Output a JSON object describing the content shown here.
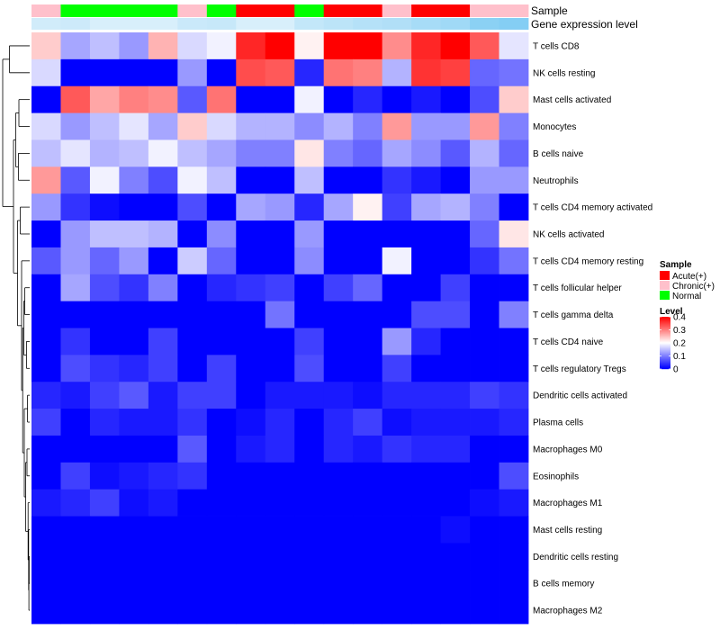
{
  "chart_data": {
    "type": "heatmap",
    "annotation_labels": {
      "sample": "Sample",
      "gene_expression": "Gene expression level"
    },
    "sample_groups": [
      "Chronic(+)",
      "Normal",
      "Normal",
      "Normal",
      "Normal",
      "Chronic(+)",
      "Normal",
      "Acute(+)",
      "Acute(+)",
      "Normal",
      "Acute(+)",
      "Acute(+)",
      "Chronic(+)",
      "Acute(+)",
      "Acute(+)",
      "Chronic(+)",
      "Chronic(+)"
    ],
    "gene_expression_level": [
      0.85,
      0.82,
      0.9,
      0.9,
      0.9,
      0.8,
      0.78,
      0.9,
      0.9,
      0.75,
      0.7,
      0.65,
      0.62,
      0.55,
      0.5,
      0.35,
      0.3
    ],
    "rows": [
      "T cells CD8",
      "NK cells resting",
      "Mast cells activated",
      "Monocytes",
      "B cells naive",
      "Neutrophils",
      "T cells CD4 memory activated",
      "NK cells activated",
      "T cells CD4 memory resting",
      "T cells follicular helper",
      "T cells gamma delta",
      "T cells CD4 naive",
      "T cells regulatory  Tregs",
      "Dendritic cells activated",
      "Plasma cells",
      "Macrophages M0",
      "Eosinophils",
      "Macrophages M1",
      "Mast cells resting",
      "Dendritic cells resting",
      "B cells memory",
      "Macrophages M2"
    ],
    "values": [
      [
        0.24,
        0.13,
        0.15,
        0.12,
        0.26,
        0.17,
        0.19,
        0.37,
        0.4,
        0.21,
        0.4,
        0.4,
        0.29,
        0.37,
        0.4,
        0.33,
        0.18
      ],
      [
        0.17,
        0.0,
        0.0,
        0.0,
        0.0,
        0.12,
        0.0,
        0.34,
        0.33,
        0.03,
        0.31,
        0.3,
        0.14,
        0.36,
        0.35,
        0.08,
        0.09
      ],
      [
        0.0,
        0.33,
        0.27,
        0.3,
        0.29,
        0.07,
        0.31,
        0.0,
        0.0,
        0.19,
        0.0,
        0.03,
        0.0,
        0.02,
        0.0,
        0.06,
        0.24
      ],
      [
        0.17,
        0.12,
        0.15,
        0.18,
        0.13,
        0.24,
        0.17,
        0.14,
        0.14,
        0.11,
        0.14,
        0.1,
        0.28,
        0.12,
        0.12,
        0.28,
        0.1
      ],
      [
        0.15,
        0.18,
        0.14,
        0.15,
        0.19,
        0.15,
        0.13,
        0.1,
        0.1,
        0.22,
        0.1,
        0.08,
        0.13,
        0.11,
        0.07,
        0.14,
        0.08
      ],
      [
        0.28,
        0.07,
        0.19,
        0.1,
        0.06,
        0.19,
        0.15,
        0.0,
        0.0,
        0.15,
        0.0,
        0.0,
        0.04,
        0.02,
        0.0,
        0.12,
        0.12
      ],
      [
        0.12,
        0.04,
        0.01,
        0.0,
        0.0,
        0.06,
        0.0,
        0.13,
        0.12,
        0.03,
        0.13,
        0.21,
        0.05,
        0.13,
        0.14,
        0.1,
        0.0
      ],
      [
        0.0,
        0.12,
        0.15,
        0.15,
        0.14,
        0.0,
        0.11,
        0.0,
        0.0,
        0.12,
        0.0,
        0.0,
        0.0,
        0.0,
        0.0,
        0.08,
        0.22
      ],
      [
        0.07,
        0.12,
        0.08,
        0.12,
        0.0,
        0.16,
        0.08,
        0.0,
        0.0,
        0.11,
        0.0,
        0.0,
        0.19,
        0.0,
        0.0,
        0.04,
        0.09
      ],
      [
        0.0,
        0.13,
        0.06,
        0.04,
        0.1,
        0.0,
        0.03,
        0.04,
        0.05,
        0.0,
        0.05,
        0.08,
        0.0,
        0.0,
        0.05,
        0.0,
        0.0
      ],
      [
        0.0,
        0.0,
        0.0,
        0.0,
        0.0,
        0.0,
        0.0,
        0.0,
        0.09,
        0.0,
        0.0,
        0.0,
        0.0,
        0.06,
        0.06,
        0.0,
        0.1
      ],
      [
        0.0,
        0.04,
        0.0,
        0.0,
        0.05,
        0.0,
        0.0,
        0.0,
        0.0,
        0.05,
        0.0,
        0.0,
        0.12,
        0.03,
        0.0,
        0.0,
        0.0
      ],
      [
        0.0,
        0.06,
        0.04,
        0.03,
        0.05,
        0.0,
        0.05,
        0.0,
        0.0,
        0.06,
        0.0,
        0.0,
        0.05,
        0.0,
        0.0,
        0.0,
        0.0
      ],
      [
        0.03,
        0.02,
        0.05,
        0.07,
        0.02,
        0.05,
        0.05,
        0.0,
        0.02,
        0.02,
        0.02,
        0.01,
        0.03,
        0.03,
        0.03,
        0.05,
        0.04
      ],
      [
        0.05,
        0.0,
        0.03,
        0.02,
        0.02,
        0.04,
        0.0,
        0.01,
        0.03,
        0.0,
        0.03,
        0.05,
        0.01,
        0.02,
        0.02,
        0.02,
        0.03
      ],
      [
        0.0,
        0.0,
        0.0,
        0.0,
        0.0,
        0.07,
        0.0,
        0.02,
        0.03,
        0.0,
        0.03,
        0.02,
        0.04,
        0.03,
        0.03,
        0.0,
        0.0
      ],
      [
        0.0,
        0.05,
        0.01,
        0.02,
        0.03,
        0.04,
        0.0,
        0.0,
        0.0,
        0.0,
        0.0,
        0.0,
        0.0,
        0.0,
        0.0,
        0.0,
        0.06
      ],
      [
        0.02,
        0.03,
        0.05,
        0.01,
        0.02,
        0.0,
        0.0,
        0.0,
        0.0,
        0.0,
        0.0,
        0.0,
        0.0,
        0.0,
        0.0,
        0.01,
        0.02
      ],
      [
        0.0,
        0.0,
        0.0,
        0.0,
        0.0,
        0.0,
        0.0,
        0.0,
        0.0,
        0.0,
        0.0,
        0.0,
        0.0,
        0.0,
        0.01,
        0.0,
        0.0
      ],
      [
        0.0,
        0.0,
        0.0,
        0.0,
        0.0,
        0.0,
        0.0,
        0.0,
        0.0,
        0.0,
        0.0,
        0.0,
        0.0,
        0.0,
        0.0,
        0.0,
        0.0
      ],
      [
        0.0,
        0.0,
        0.0,
        0.0,
        0.0,
        0.0,
        0.0,
        0.0,
        0.0,
        0.0,
        0.0,
        0.0,
        0.0,
        0.0,
        0.0,
        0.0,
        0.0
      ],
      [
        0.0,
        0.0,
        0.0,
        0.0,
        0.0,
        0.0,
        0.0,
        0.0,
        0.0,
        0.0,
        0.0,
        0.0,
        0.0,
        0.0,
        0.0,
        0.0,
        0.0
      ]
    ],
    "color_scale": {
      "low": "#0000ff",
      "mid": "#ffffff",
      "high": "#ff0000",
      "min": 0,
      "max": 0.4
    },
    "legend": {
      "sample_title": "Sample",
      "sample_items": [
        {
          "label": "Acute(+)",
          "color": "#ff0000"
        },
        {
          "label": "Chronic(+)",
          "color": "#ffc0cb"
        },
        {
          "label": "Normal",
          "color": "#00ff00"
        }
      ],
      "level_title": "Level",
      "level_ticks": [
        "0.4",
        "0.3",
        "0.2",
        "0.1",
        "0"
      ],
      "level_tick_values": [
        0.4,
        0.3,
        0.2,
        0.1,
        0
      ],
      "placement": "right"
    }
  }
}
